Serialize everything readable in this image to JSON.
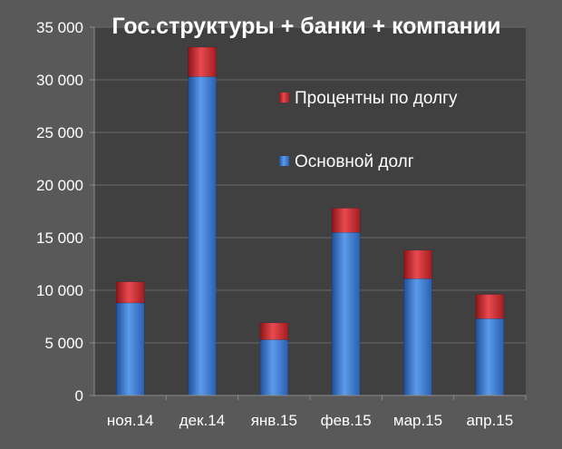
{
  "chart_data": {
    "type": "bar",
    "stacked": true,
    "title": "Гос.структуры + банки + компании",
    "categories": [
      "ноя.14",
      "дек.14",
      "янв.15",
      "фев.15",
      "мар.15",
      "апр.15"
    ],
    "series": [
      {
        "name": "Основной долг",
        "values": [
          8800,
          30300,
          5300,
          15500,
          11100,
          7300
        ],
        "color": "#3F7FD1"
      },
      {
        "name": "Процентны по долгу",
        "values": [
          2000,
          2800,
          1600,
          2300,
          2700,
          2300
        ],
        "color": "#D4282E"
      }
    ],
    "ylim": [
      0,
      35000
    ],
    "yticks": [
      "0",
      "5 000",
      "10 000",
      "15 000",
      "20 000",
      "25 000",
      "30 000",
      "35 000"
    ],
    "grid": true,
    "legend": "top-right",
    "legend_order": [
      1,
      0
    ],
    "colors": {
      "background": "#595959",
      "plot": "#404040",
      "grid": "#6A6A6A",
      "text": "#FFFFFF"
    }
  }
}
